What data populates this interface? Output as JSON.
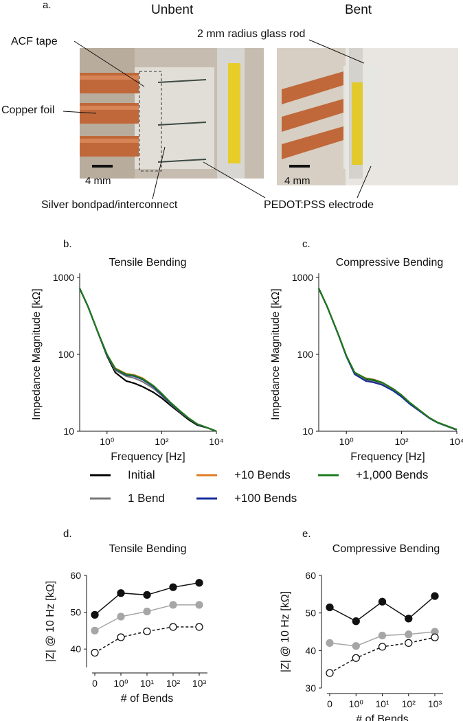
{
  "panel_a": {
    "letter": "a.",
    "header_unbent": "Unbent",
    "header_bent": "Bent",
    "labels": {
      "acf_tape": "ACF tape",
      "copper_foil": "Copper foil",
      "glass_rod": "2 mm radius glass rod",
      "silver_bondpad": "Silver bondpad/interconnect",
      "pedot_electrode": "PEDOT:PSS electrode",
      "scale_unbent": "4 mm",
      "scale_bent": "4 mm"
    }
  },
  "legend": {
    "entries": [
      {
        "label": "Initial",
        "color": "#000000"
      },
      {
        "label": "1 Bend",
        "color": "#777777"
      },
      {
        "label": "+10 Bends",
        "color": "#e07b1f"
      },
      {
        "label": "+100 Bends",
        "color": "#1a2f9a"
      },
      {
        "label": "+1,000 Bends",
        "color": "#1d7a1d"
      }
    ]
  },
  "chart_data": [
    {
      "id": "b",
      "letter": "b.",
      "type": "line",
      "title": "Tensile Bending",
      "xlabel": "Frequency [Hz]",
      "ylabel": "Impedance Magnitude [kΩ]",
      "xscale": "log",
      "yscale": "log",
      "xlim": [
        0.1,
        10000
      ],
      "ylim": [
        10,
        1000
      ],
      "yticks": [
        "1000",
        "100",
        "10"
      ],
      "xticks": [
        "10⁰",
        "10²",
        "10⁴"
      ],
      "x": [
        0.1,
        0.2,
        0.5,
        1,
        2,
        5,
        10,
        20,
        50,
        100,
        200,
        500,
        1000,
        2000,
        5000,
        10000
      ],
      "series": [
        {
          "name": "Initial",
          "color": "#000000",
          "values": [
            720,
            420,
            180,
            95,
            58,
            45,
            42,
            38,
            32,
            27,
            22,
            17,
            14,
            12,
            11,
            10
          ]
        },
        {
          "name": "1 Bend",
          "color": "#777777",
          "values": [
            720,
            420,
            180,
            97,
            62,
            52,
            49,
            44,
            36,
            29,
            23,
            17.5,
            14.5,
            12.3,
            11,
            10
          ]
        },
        {
          "name": "+10 Bends",
          "color": "#e07b1f",
          "values": [
            720,
            420,
            182,
            99,
            66,
            56,
            54,
            49,
            39,
            31,
            24,
            18,
            14.7,
            12.4,
            11,
            10
          ]
        },
        {
          "name": "+100 Bends",
          "color": "#1a2f9a",
          "values": [
            720,
            420,
            181,
            98,
            64,
            54,
            52,
            47,
            38,
            30,
            23.5,
            17.8,
            14.6,
            12.3,
            11,
            10
          ]
        },
        {
          "name": "+1,000 Bends",
          "color": "#1d7a1d",
          "values": [
            720,
            420,
            182,
            100,
            65,
            55,
            53,
            48,
            39,
            31,
            24,
            18,
            14.7,
            12.4,
            11,
            10
          ]
        }
      ]
    },
    {
      "id": "c",
      "letter": "c.",
      "type": "line",
      "title": "Compressive Bending",
      "xlabel": "Frequency [Hz]",
      "ylabel": "Impedance Magnitude [kΩ]",
      "xscale": "log",
      "yscale": "log",
      "xlim": [
        0.1,
        10000
      ],
      "ylim": [
        10,
        1000
      ],
      "yticks": [
        "1000",
        "100",
        "10"
      ],
      "xticks": [
        "10⁰",
        "10²",
        "10⁴"
      ],
      "x": [
        0.1,
        0.2,
        0.5,
        1,
        2,
        5,
        10,
        20,
        50,
        100,
        200,
        500,
        1000,
        2000,
        5000,
        10000
      ],
      "series": [
        {
          "name": "Initial",
          "color": "#000000",
          "values": [
            720,
            420,
            185,
            95,
            57,
            48,
            46,
            42,
            35,
            29,
            23,
            18,
            15,
            13,
            11.5,
            10.5
          ]
        },
        {
          "name": "1 Bend",
          "color": "#777777",
          "values": [
            720,
            420,
            185,
            95,
            56,
            46,
            44,
            41,
            34,
            28.5,
            23,
            18,
            15,
            13,
            11.5,
            10.5
          ]
        },
        {
          "name": "+10 Bends",
          "color": "#e07b1f",
          "values": [
            720,
            420,
            186,
            96,
            58,
            49,
            47,
            43,
            35.5,
            29.5,
            23.5,
            18.2,
            15,
            13,
            11.5,
            10.5
          ]
        },
        {
          "name": "+100 Bends",
          "color": "#1a2f9a",
          "values": [
            720,
            420,
            184,
            94,
            55,
            45,
            43,
            40,
            33.5,
            28,
            22.5,
            17.8,
            14.8,
            12.9,
            11.4,
            10.4
          ]
        },
        {
          "name": "+1,000 Bends",
          "color": "#1d7a1d",
          "values": [
            720,
            420,
            186,
            96,
            58,
            48.5,
            46.5,
            43,
            35.5,
            29.5,
            23.5,
            18.2,
            15,
            13,
            11.5,
            10.5
          ]
        }
      ]
    },
    {
      "id": "d",
      "letter": "d.",
      "type": "line",
      "title": "Tensile Bending",
      "xlabel": "# of Bends",
      "ylabel": "|Z| @ 10 Hz [kΩ]",
      "categories": [
        "0",
        "10⁰",
        "10¹",
        "10²",
        "10³"
      ],
      "ylim": [
        35,
        60
      ],
      "yticks": [
        40,
        50,
        60
      ],
      "series": [
        {
          "style": "black-filled",
          "values": [
            49.3,
            55.2,
            54.7,
            56.8,
            58.0
          ]
        },
        {
          "style": "gray-filled",
          "values": [
            45.0,
            48.8,
            50.2,
            52.0,
            52.0
          ]
        },
        {
          "style": "open-dashed",
          "values": [
            39.0,
            43.2,
            44.8,
            46.0,
            46.0
          ]
        }
      ]
    },
    {
      "id": "e",
      "letter": "e.",
      "type": "line",
      "title": "Compressive Bending",
      "xlabel": "# of Bends",
      "ylabel": "|Z| @ 10 Hz [kΩ]",
      "categories": [
        "0",
        "10⁰",
        "10¹",
        "10²",
        "10³"
      ],
      "ylim": [
        30,
        60
      ],
      "yticks": [
        30,
        40,
        50,
        60
      ],
      "series": [
        {
          "style": "black-filled",
          "values": [
            51.5,
            47.8,
            53.0,
            48.5,
            54.5
          ]
        },
        {
          "style": "gray-filled",
          "values": [
            42.0,
            41.2,
            44.0,
            44.3,
            45.0
          ]
        },
        {
          "style": "open-dashed",
          "values": [
            34.0,
            38.0,
            41.0,
            42.0,
            43.5
          ]
        }
      ]
    }
  ]
}
